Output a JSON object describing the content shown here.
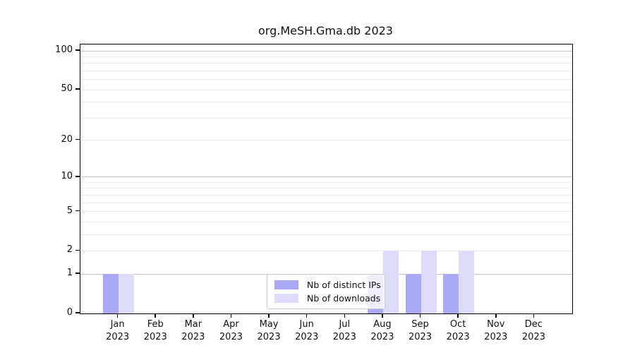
{
  "figure": {
    "title": "org.MeSH.Gma.db 2023"
  },
  "chart_data": {
    "type": "bar",
    "title": "org.MeSH.Gma.db 2023",
    "categories": [
      "Jan",
      "Feb",
      "Mar",
      "Apr",
      "May",
      "Jun",
      "Jul",
      "Aug",
      "Sep",
      "Oct",
      "Nov",
      "Dec"
    ],
    "x_year": "2023",
    "series": [
      {
        "name": "Nb of distinct IPs",
        "color": "#a9a9f8",
        "values": [
          1,
          0,
          0,
          0,
          0,
          0,
          0,
          1,
          1,
          1,
          0,
          0
        ]
      },
      {
        "name": "Nb of downloads",
        "color": "#dcdcf8",
        "values": [
          1,
          0,
          0,
          0,
          0,
          0,
          0,
          2,
          2,
          2,
          0,
          0
        ]
      }
    ],
    "xlabel": "",
    "ylabel": "",
    "yscale": "log1p",
    "ylim": [
      0,
      112
    ],
    "yticks": [
      0,
      1,
      2,
      5,
      10,
      20,
      50,
      100
    ],
    "grid": {
      "values": [
        1,
        2,
        3,
        4,
        5,
        6,
        7,
        8,
        9,
        10,
        20,
        30,
        40,
        50,
        60,
        70,
        80,
        90,
        100
      ],
      "emphasized": [
        1,
        10,
        100
      ],
      "color": "#ececec",
      "emphasized_color": "#c6c6c6"
    },
    "legend": {
      "position": "lower center"
    }
  }
}
